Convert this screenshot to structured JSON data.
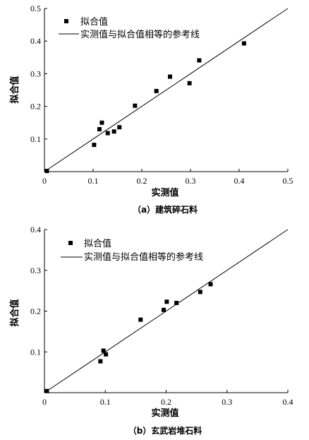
{
  "chart_data": [
    {
      "type": "scatter",
      "caption": "（a）建筑碎石料",
      "xlabel": "实测值",
      "ylabel": "拟合值",
      "xlim": [
        0,
        0.5
      ],
      "ylim": [
        0,
        0.5
      ],
      "xticks": [
        "0",
        "0.1",
        "0.2",
        "0.3",
        "0.4",
        "0.5"
      ],
      "yticks": [
        "0",
        "0.1",
        "0.2",
        "0.3",
        "0.4",
        "0.5"
      ],
      "legend": {
        "position": "top-left",
        "points_label": "拟合值",
        "line_label": "实测值与拟合值相等的参考线"
      },
      "series": [
        {
          "name": "拟合值",
          "kind": "points",
          "x": [
            0.005,
            0.102,
            0.113,
            0.118,
            0.13,
            0.143,
            0.154,
            0.186,
            0.23,
            0.258,
            0.298,
            0.318,
            0.41
          ],
          "y": [
            0.002,
            0.082,
            0.13,
            0.15,
            0.118,
            0.123,
            0.136,
            0.202,
            0.247,
            0.291,
            0.271,
            0.341,
            0.393
          ]
        },
        {
          "name": "实测值与拟合值相等的参考线",
          "kind": "line",
          "x": [
            0,
            0.5
          ],
          "y": [
            0,
            0.5
          ]
        }
      ]
    },
    {
      "type": "scatter",
      "caption": "（b）玄武岩堆石料",
      "xlabel": "实测值",
      "ylabel": "拟合值",
      "xlim": [
        0,
        0.4
      ],
      "ylim": [
        0,
        0.4
      ],
      "xticks": [
        "0",
        "0.1",
        "0.2",
        "0.3",
        "0.4"
      ],
      "yticks": [
        "0",
        "0.1",
        "0.2",
        "0.3",
        "0.4"
      ],
      "legend": {
        "position": "top-left",
        "points_label": "拟合值",
        "line_label": "实测值与拟合值相等的参考线"
      },
      "series": [
        {
          "name": "拟合值",
          "kind": "points",
          "x": [
            0.004,
            0.092,
            0.097,
            0.101,
            0.158,
            0.196,
            0.201,
            0.217,
            0.256,
            0.273
          ],
          "y": [
            0.004,
            0.077,
            0.103,
            0.094,
            0.179,
            0.203,
            0.223,
            0.22,
            0.247,
            0.266
          ]
        },
        {
          "name": "实测值与拟合值相等的参考线",
          "kind": "line",
          "x": [
            0,
            0.4
          ],
          "y": [
            0,
            0.4
          ]
        }
      ]
    }
  ]
}
